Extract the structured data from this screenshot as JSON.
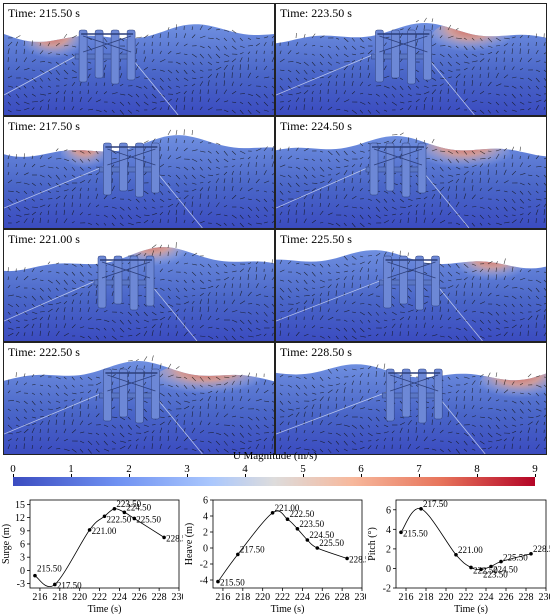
{
  "panels": [
    {
      "time": "Time:  215.50 s"
    },
    {
      "time": "Time:  223.50 s"
    },
    {
      "time": "Time:  217.50 s"
    },
    {
      "time": "Time:  224.50 s"
    },
    {
      "time": "Time:  221.00 s"
    },
    {
      "time": "Time:  225.50 s"
    },
    {
      "time": "Time:  222.50 s"
    },
    {
      "time": "Time:  228.50 s"
    }
  ],
  "colorbar": {
    "title": "U Magnitude (m/s)",
    "ticks": [
      "0",
      "1",
      "2",
      "3",
      "4",
      "5",
      "6",
      "7",
      "8",
      "9"
    ],
    "colors": {
      "low": "#3b4cc0",
      "mid": "#dddcdc",
      "high": "#b40426"
    }
  },
  "chart_data": [
    {
      "type": "line",
      "xlabel": "Time (s)",
      "ylabel": "Surge (m)",
      "xlim": [
        215,
        230
      ],
      "ylim": [
        -4,
        16
      ],
      "xticks": [
        "216",
        "218",
        "220",
        "222",
        "224",
        "226",
        "228",
        "230"
      ],
      "yticks": [
        "-3",
        "0",
        "3",
        "6",
        "9",
        "12",
        "15"
      ],
      "x": [
        215.5,
        217.5,
        221.0,
        222.5,
        223.5,
        224.5,
        225.5,
        228.5
      ],
      "y": [
        -1.2,
        -3.2,
        9.2,
        12.3,
        14.0,
        13.2,
        11.8,
        7.5
      ],
      "point_labels": [
        "215.50",
        "217.50",
        "221.00",
        "222.50",
        "223.50",
        "224.50",
        "225.50",
        "228.50"
      ]
    },
    {
      "type": "line",
      "xlabel": "Time (s)",
      "ylabel": "Heave (m)",
      "xlim": [
        215,
        230
      ],
      "ylim": [
        -5,
        6
      ],
      "xticks": [
        "216",
        "218",
        "220",
        "222",
        "224",
        "226",
        "228",
        "230"
      ],
      "yticks": [
        "-4",
        "-2",
        "0",
        "2",
        "4",
        "6"
      ],
      "x": [
        215.5,
        217.5,
        221.0,
        222.5,
        223.5,
        224.5,
        225.5,
        228.5
      ],
      "y": [
        -4.2,
        -0.8,
        4.4,
        3.6,
        2.4,
        1.0,
        0.0,
        -1.3
      ],
      "point_labels": [
        "215.50",
        "217.50",
        "221.00",
        "222.50",
        "223.50",
        "224.50",
        "225.50",
        "228.50"
      ]
    },
    {
      "type": "line",
      "xlabel": "Time (s)",
      "ylabel": "Pitch (°)",
      "xlim": [
        215,
        230
      ],
      "ylim": [
        -2,
        7
      ],
      "xticks": [
        "216",
        "218",
        "220",
        "222",
        "224",
        "226",
        "228",
        "230"
      ],
      "yticks": [
        "-2",
        "0",
        "2",
        "4",
        "6"
      ],
      "x": [
        215.5,
        217.5,
        221.0,
        222.5,
        223.5,
        224.5,
        225.5,
        228.5
      ],
      "y": [
        3.7,
        6.1,
        1.4,
        0.1,
        -0.1,
        0.2,
        0.7,
        1.5
      ],
      "point_labels": [
        "215.50",
        "217.50",
        "221.00",
        "222.50",
        "223.50",
        "224.50",
        "225.50",
        "228.50"
      ]
    }
  ]
}
